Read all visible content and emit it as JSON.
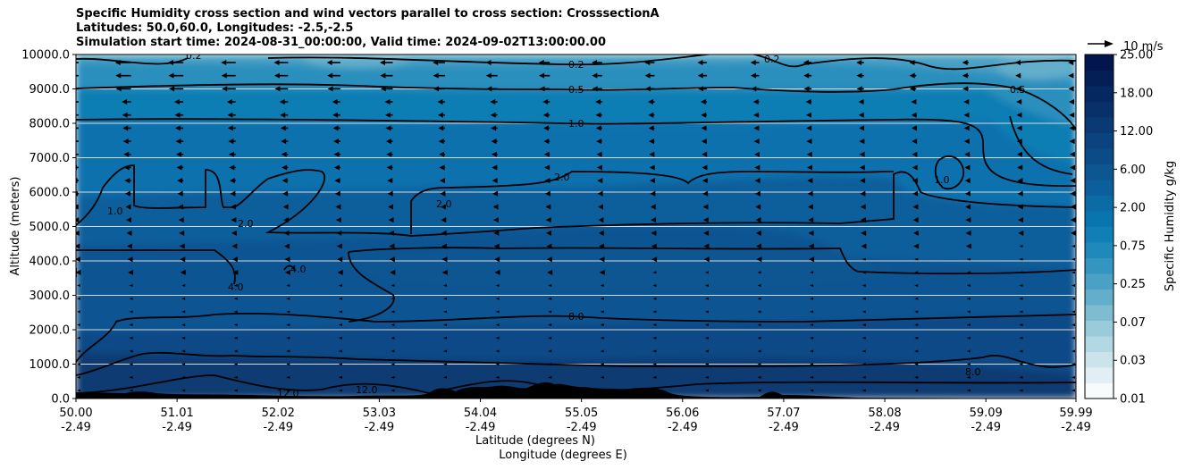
{
  "chart_data": {
    "type": "heatmap",
    "title_lines": [
      "Specific Humidity cross section and wind vectors parallel to cross section: CrosssectionA",
      "Latitudes: 50.0,60.0, Longitudes: -2.5,-2.5",
      "Simulation start time: 2024-08-31_00:00:00, Valid time: 2024-09-02T13:00:00.00"
    ],
    "ylabel": "Altitude (meters)",
    "xlabel_lines": [
      "Latitude (degrees N)",
      "Longitude (degrees E)"
    ],
    "x_ticks": [
      {
        "lat": "50.00",
        "lon": "-2.49",
        "value": 50.0
      },
      {
        "lat": "51.01",
        "lon": "-2.49",
        "value": 51.01
      },
      {
        "lat": "52.02",
        "lon": "-2.49",
        "value": 52.02
      },
      {
        "lat": "53.03",
        "lon": "-2.49",
        "value": 53.03
      },
      {
        "lat": "54.04",
        "lon": "-2.49",
        "value": 54.04
      },
      {
        "lat": "55.05",
        "lon": "-2.49",
        "value": 55.05
      },
      {
        "lat": "56.06",
        "lon": "-2.49",
        "value": 56.06
      },
      {
        "lat": "57.07",
        "lon": "-2.49",
        "value": 57.07
      },
      {
        "lat": "58.08",
        "lon": "-2.49",
        "value": 58.08
      },
      {
        "lat": "59.09",
        "lon": "-2.49",
        "value": 59.09
      },
      {
        "lat": "59.99",
        "lon": "-2.49",
        "value": 59.99
      }
    ],
    "xlim": [
      50.0,
      59.99
    ],
    "y_ticks": [
      "0.0",
      "1000.0",
      "2000.0",
      "3000.0",
      "4000.0",
      "5000.0",
      "6000.0",
      "7000.0",
      "8000.0",
      "9000.0",
      "10000.0"
    ],
    "ylim": [
      0,
      10000
    ],
    "grid": "horizontal",
    "colorbar": {
      "label": "Specific Humidity g/kg",
      "ticks": [
        "0.01",
        "0.03",
        "0.07",
        "0.25",
        "0.75",
        "2.00",
        "6.00",
        "12.00",
        "18.00",
        "25.00"
      ],
      "colors": [
        "#f7fbfc",
        "#e1eff4",
        "#cbe4ec",
        "#b2d8e4",
        "#9acbdb",
        "#7fbcd2",
        "#62aecb",
        "#4aa0c5",
        "#3495c0",
        "#2089bb",
        "#107fb5",
        "#0875ae",
        "#0a6ba5",
        "#0b609c",
        "#0c5692",
        "#0b4c88",
        "#0a437f",
        "#093a74",
        "#08316a",
        "#062860",
        "#041e56",
        "#02154c"
      ]
    },
    "vector_key": {
      "label": "10 m/s"
    },
    "contour_labels": [
      "0.2",
      "0.5",
      "1.0",
      "2.0",
      "4.0",
      "8.0",
      "12.0"
    ],
    "colors": {
      "contour": "#000000",
      "terrain": "#000000"
    }
  }
}
